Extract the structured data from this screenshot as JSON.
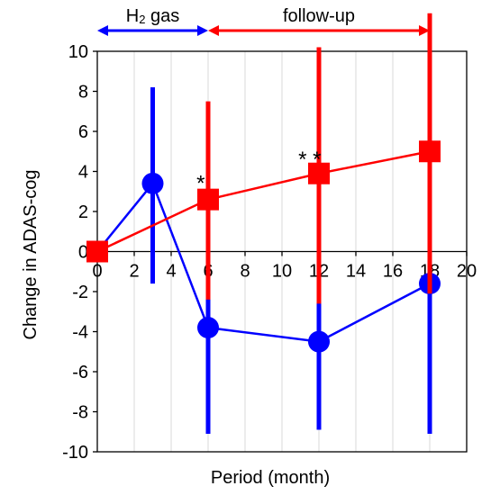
{
  "chart_data": {
    "type": "line",
    "xlabel": "Period (month)",
    "ylabel": "Change in ADAS-cog",
    "xlim": [
      0,
      20
    ],
    "ylim": [
      -10,
      10
    ],
    "x_ticks": [
      "0",
      "2",
      "4",
      "6",
      "8",
      "10",
      "12",
      "14",
      "16",
      "18",
      "20"
    ],
    "y_ticks": [
      "-10",
      "-8",
      "-6",
      "-4",
      "-2",
      "0",
      "2",
      "4",
      "6",
      "8",
      "10"
    ],
    "grid": true,
    "series": [
      {
        "name": "",
        "color": "#0000ff",
        "marker": "circle",
        "points": [
          {
            "x": 0,
            "y": 0,
            "err_low": 0,
            "err_high": 0
          },
          {
            "x": 3,
            "y": 3.4,
            "err_low": -1.6,
            "err_high": 8.2
          },
          {
            "x": 6,
            "y": -3.8,
            "err_low": -9.1,
            "err_high": 1.1
          },
          {
            "x": 12,
            "y": -4.5,
            "err_low": -8.9,
            "err_high": 0.2
          },
          {
            "x": 18,
            "y": -1.6,
            "err_low": -9.1,
            "err_high": 6.3
          }
        ]
      },
      {
        "name": "",
        "color": "#ff0000",
        "marker": "square",
        "points": [
          {
            "x": 0,
            "y": 0,
            "err_low": 0,
            "err_high": 0
          },
          {
            "x": 6,
            "y": 2.6,
            "err_low": -2.4,
            "err_high": 7.5
          },
          {
            "x": 12,
            "y": 3.9,
            "err_low": -2.6,
            "err_high": 10.2
          },
          {
            "x": 18,
            "y": 5.0,
            "err_low": -2.1,
            "err_high": 11.9
          }
        ]
      }
    ],
    "annotations": [
      {
        "text": "*",
        "x": 5.6,
        "y": 3.5
      },
      {
        "text": "* *",
        "x": 11.5,
        "y": 4.7
      }
    ],
    "periods": [
      {
        "label_main": "H",
        "label_sub": "2",
        "label_rest": " gas",
        "from": 0,
        "to": 6,
        "color": "#0000ff"
      },
      {
        "label": "follow-up",
        "from": 6,
        "to": 18,
        "color": "#ff0000"
      }
    ]
  }
}
